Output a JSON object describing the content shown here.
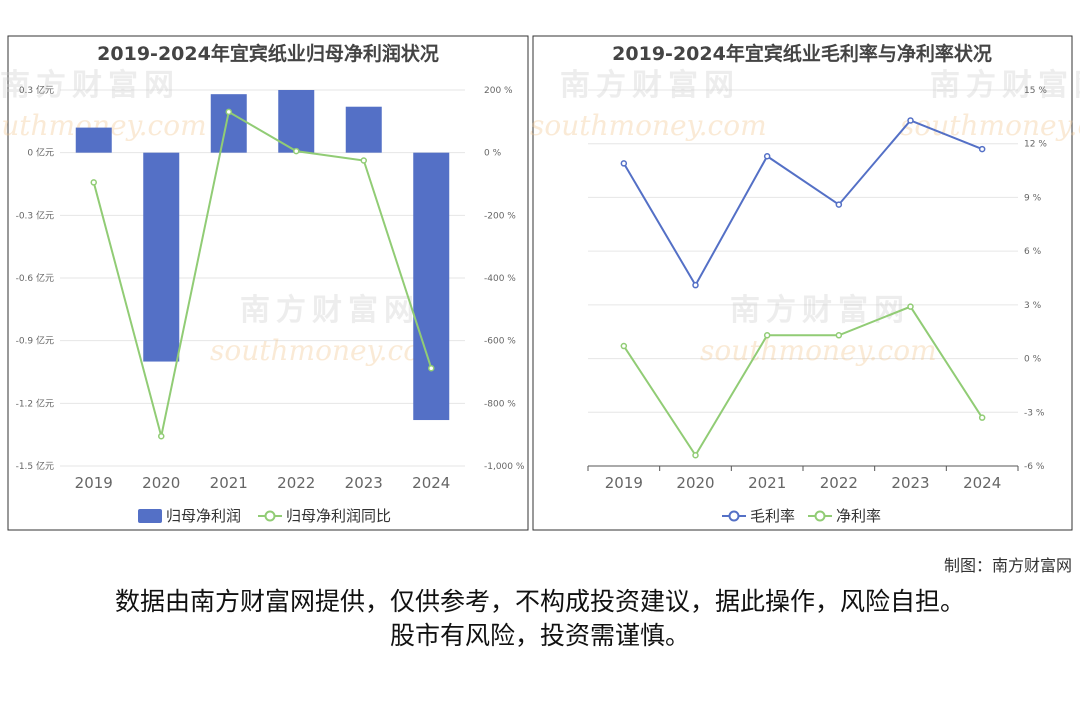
{
  "chart_data": [
    {
      "type": "bar",
      "title": "2019-2024年宜宾纸业归母净利润状况",
      "categories": [
        "2019",
        "2020",
        "2021",
        "2022",
        "2023",
        "2024"
      ],
      "series": [
        {
          "name": "归母净利润",
          "type": "bar",
          "axis": "left",
          "color": "#5470c6",
          "values": [
            0.12,
            -1.0,
            0.28,
            0.3,
            0.22,
            -1.28
          ]
        },
        {
          "name": "归母净利润同比",
          "type": "line",
          "axis": "right",
          "color": "#91cc75",
          "values": [
            -95,
            -905,
            130,
            5,
            -25,
            -688
          ]
        }
      ],
      "left_axis": {
        "ticks": [
          0.3,
          0,
          -0.3,
          -0.6,
          -0.9,
          -1.2,
          -1.5
        ],
        "tick_labels": [
          "0.3 亿元",
          "0 亿元",
          "-0.3 亿元",
          "-0.6 亿元",
          "-0.9 亿元",
          "-1.2 亿元",
          "-1.5 亿元"
        ],
        "range": [
          -1.5,
          0.3
        ]
      },
      "right_axis": {
        "ticks": [
          200,
          0,
          -200,
          -400,
          -600,
          -800,
          -1000
        ],
        "tick_labels": [
          "200 %",
          "0 %",
          "-200 %",
          "-400 %",
          "-600 %",
          "-800 %",
          "-1,000 %"
        ],
        "range": [
          -1000,
          200
        ]
      },
      "grid": true,
      "legend": "bottom"
    },
    {
      "type": "line",
      "title": "2019-2024年宜宾纸业毛利率与净利率状况",
      "categories": [
        "2019",
        "2020",
        "2021",
        "2022",
        "2023",
        "2024"
      ],
      "series": [
        {
          "name": "毛利率",
          "color": "#5470c6",
          "values": [
            10.9,
            4.1,
            11.3,
            8.6,
            13.3,
            11.7
          ]
        },
        {
          "name": "净利率",
          "color": "#91cc75",
          "values": [
            0.7,
            -5.4,
            1.3,
            1.3,
            2.9,
            -3.3
          ]
        }
      ],
      "right_axis": {
        "ticks": [
          15,
          12,
          9,
          6,
          3,
          0,
          -3,
          -6
        ],
        "tick_labels": [
          "15 %",
          "12 %",
          "9 %",
          "6 %",
          "3 %",
          "0 %",
          "-3 %",
          "-6 %"
        ],
        "range": [
          -6,
          15
        ]
      },
      "grid": true,
      "legend": "bottom"
    }
  ],
  "watermark": {
    "cn": "南方财富网",
    "en": "southmoney.com"
  },
  "footer": {
    "credit": "制图：南方财富网",
    "disclaimer_line1": "数据由南方财富网提供，仅供参考，不构成投资建议，据此操作，风险自担。",
    "disclaimer_line2": "股市有风险，投资需谨慎。"
  }
}
